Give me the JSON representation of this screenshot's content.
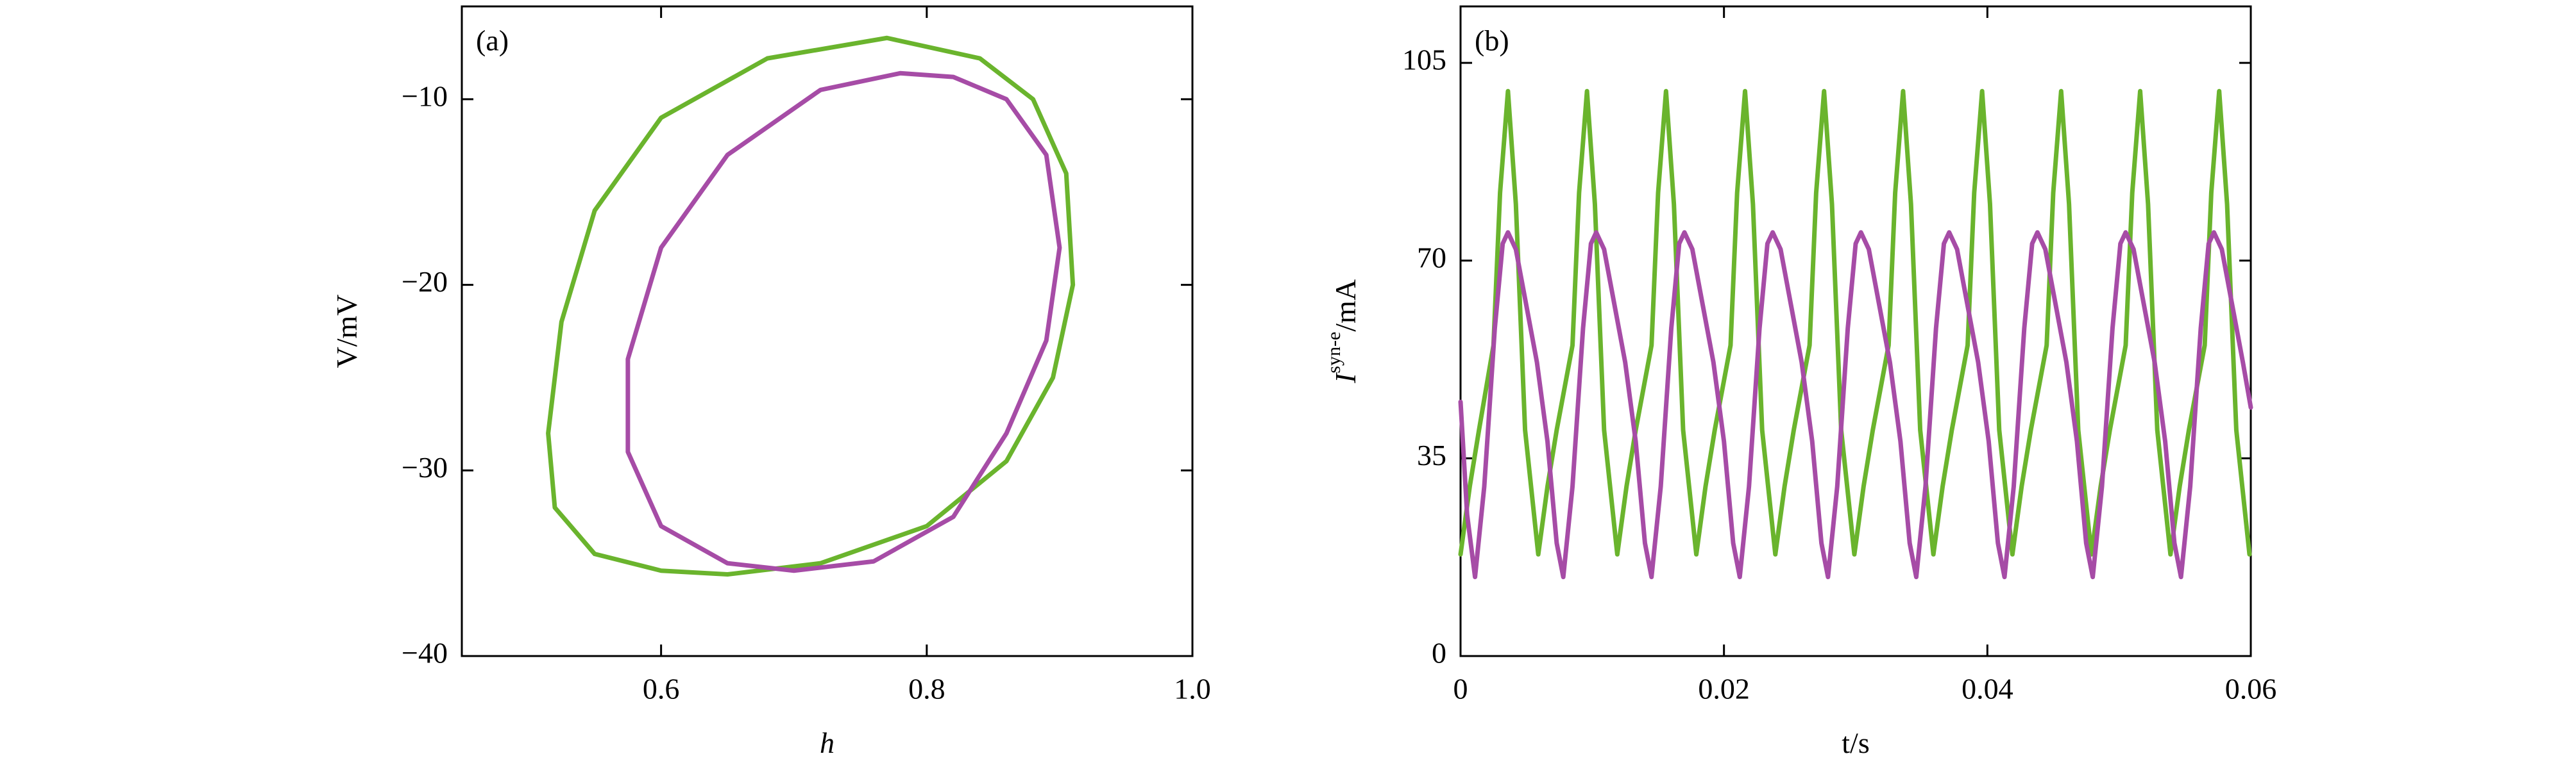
{
  "chart_data": [
    {
      "type": "line",
      "panel": "(a)",
      "xlabel": "h",
      "ylabel": "V/mV",
      "xlim": [
        0.45,
        1.0
      ],
      "ylim": [
        -40,
        -5
      ],
      "xticks": [
        0.6,
        0.8,
        {
          "value": 1.0,
          "label": "1.0"
        }
      ],
      "yticks": [
        {
          "value": -40,
          "label": "−40"
        },
        {
          "value": -30,
          "label": "−30"
        },
        {
          "value": -20,
          "label": "−20"
        },
        {
          "value": -10,
          "label": "−10"
        }
      ],
      "series": [
        {
          "color": "#6ab42d",
          "x": [
            0.77,
            0.68,
            0.6,
            0.55,
            0.525,
            0.515,
            0.52,
            0.55,
            0.6,
            0.65,
            0.72,
            0.8,
            0.86,
            0.895,
            0.91,
            0.905,
            0.88,
            0.84,
            0.77
          ],
          "values": [
            -6.7,
            -7.8,
            -11,
            -16,
            -22,
            -28,
            -32,
            -34.5,
            -35.4,
            -35.6,
            -35,
            -33,
            -29.5,
            -25,
            -20,
            -14,
            -10,
            -7.8,
            -6.7
          ]
        },
        {
          "color": "#a64ca6",
          "x": [
            0.78,
            0.72,
            0.65,
            0.6,
            0.575,
            0.575,
            0.6,
            0.65,
            0.7,
            0.76,
            0.82,
            0.86,
            0.89,
            0.9,
            0.89,
            0.86,
            0.82,
            0.78
          ],
          "values": [
            -8.6,
            -9.5,
            -13,
            -18,
            -24,
            -29,
            -33,
            -35,
            -35.4,
            -34.9,
            -32.5,
            -28,
            -23,
            -18,
            -13,
            -10,
            -8.8,
            -8.6
          ]
        }
      ]
    },
    {
      "type": "line",
      "panel": "(b)",
      "xlabel": "t/s",
      "ylabel": {
        "base": "I",
        "sup": "syn-e",
        "unit": "/mA"
      },
      "xlim": [
        0,
        0.06
      ],
      "ylim": [
        0,
        115
      ],
      "xticks": [
        0,
        0.02,
        0.04,
        0.06
      ],
      "yticks": [
        0,
        35,
        70,
        105
      ],
      "series": [
        {
          "color": "#6ab42d",
          "x": [
            0,
            0.0007,
            0.0014,
            0.0025,
            0.003,
            0.0036,
            0.0042,
            0.0049,
            0.0059,
            0.0066,
            0.0073,
            0.0085,
            0.009,
            0.0096,
            0.0102,
            0.0109,
            0.0119,
            0.0126,
            0.0133,
            0.0145,
            0.015,
            0.0156,
            0.0162,
            0.0169,
            0.0179,
            0.0186,
            0.0193,
            0.0205,
            0.021,
            0.0216,
            0.0222,
            0.0229,
            0.0239,
            0.0246,
            0.0253,
            0.0265,
            0.027,
            0.0276,
            0.0282,
            0.0289,
            0.0299,
            0.0306,
            0.0313,
            0.0325,
            0.033,
            0.0336,
            0.0342,
            0.0349,
            0.0359,
            0.0366,
            0.0373,
            0.0385,
            0.039,
            0.0396,
            0.0402,
            0.0409,
            0.0419,
            0.0426,
            0.0433,
            0.0445,
            0.045,
            0.0456,
            0.0462,
            0.0469,
            0.0479,
            0.0486,
            0.0493,
            0.0505,
            0.051,
            0.0516,
            0.0522,
            0.0529,
            0.0539,
            0.0546,
            0.0553,
            0.0565,
            0.057,
            0.0576,
            0.0582,
            0.0589,
            0.0599
          ],
          "values": [
            18,
            30,
            40,
            55,
            82,
            100,
            80,
            40,
            18,
            30,
            40,
            55,
            82,
            100,
            80,
            40,
            18,
            30,
            40,
            55,
            82,
            100,
            80,
            40,
            18,
            30,
            40,
            55,
            82,
            100,
            80,
            40,
            18,
            30,
            40,
            55,
            82,
            100,
            80,
            40,
            18,
            30,
            40,
            55,
            82,
            100,
            80,
            40,
            18,
            30,
            40,
            55,
            82,
            100,
            80,
            40,
            18,
            30,
            40,
            55,
            82,
            100,
            80,
            40,
            18,
            30,
            40,
            55,
            82,
            100,
            80,
            40,
            18,
            30,
            40,
            55,
            82,
            100,
            80,
            40,
            18
          ]
        },
        {
          "color": "#a64ca6",
          "x": [
            0,
            0.0005,
            0.0011,
            0.0018,
            0.0026,
            0.0032,
            0.0036,
            0.0042,
            0.005,
            0.0058,
            0.0066,
            0.0073,
            0.0078,
            0.0085,
            0.0093,
            0.0099,
            0.0103,
            0.0109,
            0.0117,
            0.0125,
            0.0133,
            0.014,
            0.0145,
            0.0152,
            0.016,
            0.0166,
            0.017,
            0.0176,
            0.0184,
            0.0192,
            0.02,
            0.0207,
            0.0212,
            0.0219,
            0.0227,
            0.0233,
            0.0237,
            0.0243,
            0.0251,
            0.0259,
            0.0267,
            0.0274,
            0.0279,
            0.0286,
            0.0294,
            0.03,
            0.0304,
            0.031,
            0.0318,
            0.0326,
            0.0334,
            0.0341,
            0.0346,
            0.0353,
            0.0361,
            0.0367,
            0.0371,
            0.0377,
            0.0385,
            0.0393,
            0.0401,
            0.0408,
            0.0413,
            0.042,
            0.0428,
            0.0434,
            0.0438,
            0.0444,
            0.0452,
            0.046,
            0.0468,
            0.0475,
            0.048,
            0.0487,
            0.0495,
            0.0501,
            0.0505,
            0.0511,
            0.0519,
            0.0527,
            0.0535,
            0.0542,
            0.0547,
            0.0554,
            0.0562,
            0.0568,
            0.0572,
            0.0578,
            0.0586,
            0.0594,
            0.06
          ],
          "values": [
            45,
            25,
            14,
            30,
            58,
            73,
            75,
            72,
            62,
            52,
            38,
            20,
            14,
            30,
            58,
            73,
            75,
            72,
            62,
            52,
            38,
            20,
            14,
            30,
            58,
            73,
            75,
            72,
            62,
            52,
            38,
            20,
            14,
            30,
            58,
            73,
            75,
            72,
            62,
            52,
            38,
            20,
            14,
            30,
            58,
            73,
            75,
            72,
            62,
            52,
            38,
            20,
            14,
            30,
            58,
            73,
            75,
            72,
            62,
            52,
            38,
            20,
            14,
            30,
            58,
            73,
            75,
            72,
            62,
            52,
            38,
            20,
            14,
            30,
            58,
            73,
            75,
            72,
            62,
            52,
            38,
            20,
            14,
            30,
            58,
            73,
            75,
            72,
            62,
            52,
            44
          ]
        }
      ]
    }
  ]
}
